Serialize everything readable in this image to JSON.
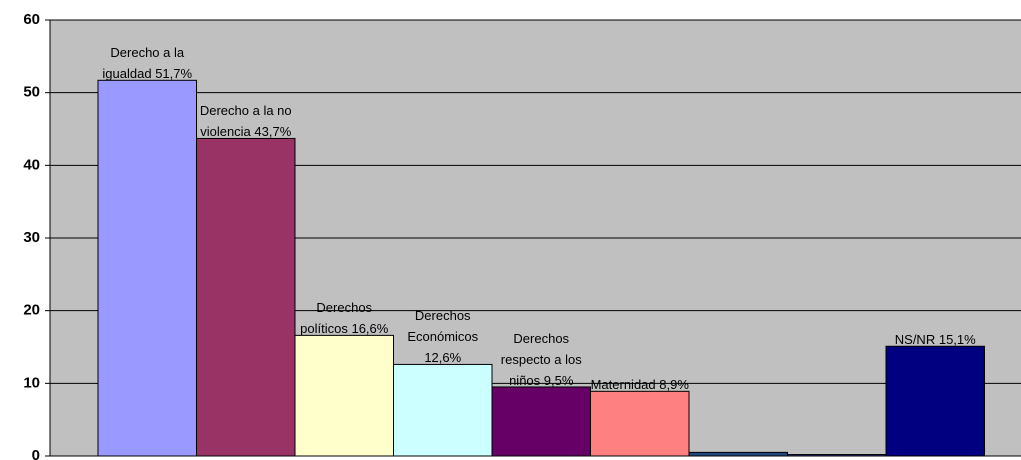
{
  "chart_data": {
    "type": "bar",
    "categories": [
      "Derecho a la igualdad",
      "Derecho a la no violencia",
      "Derechos políticos",
      "Derechos Económicos",
      "Derechos respecto a los niños",
      "Maternidad",
      null,
      null,
      "NS/NR"
    ],
    "values": [
      51.7,
      43.7,
      16.6,
      12.6,
      9.5,
      8.9,
      0.5,
      0.2,
      15.1
    ],
    "value_labels": [
      "51,7%",
      "43,7%",
      "16,6%",
      "12,6%",
      "9,5%",
      "8,9%",
      null,
      null,
      "15,1%"
    ],
    "colors": [
      "#9999ff",
      "#993366",
      "#ffffcc",
      "#ccffff",
      "#660066",
      "#ff8080",
      "#1f497d",
      "#333399",
      "#000080"
    ],
    "ylim": [
      0,
      60
    ],
    "yticks": [
      0,
      10,
      20,
      30,
      40,
      50,
      60
    ],
    "grid": true
  }
}
